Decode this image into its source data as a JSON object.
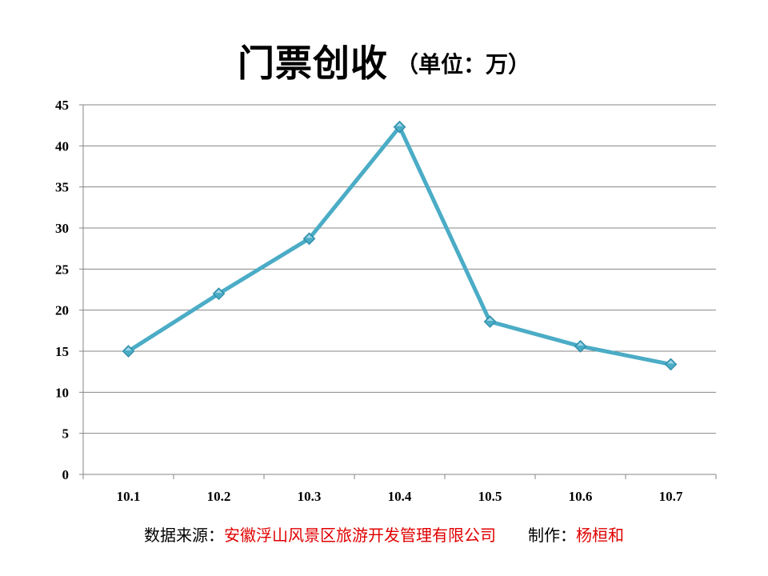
{
  "title": {
    "main": "门票创收",
    "unit": "（单位：万）"
  },
  "footer": {
    "source_label": "数据来源：",
    "source_value": "安徽浮山风景区旅游开发管理有限公司",
    "maker_label": "制作：",
    "maker_value": "杨桓和"
  },
  "colors": {
    "line": "#4bacc6",
    "marker": "#4bacc6",
    "grid": "#868686",
    "footer_value": "#e00000"
  },
  "chart_data": {
    "type": "line",
    "categories": [
      "10.1",
      "10.2",
      "10.3",
      "10.4",
      "10.5",
      "10.6",
      "10.7"
    ],
    "series": [
      {
        "values": [
          15,
          22,
          28.7,
          42.3,
          18.6,
          15.6,
          13.4
        ]
      }
    ],
    "y_ticks": [
      "0",
      "5",
      "10",
      "15",
      "20",
      "25",
      "30",
      "35",
      "40",
      "45"
    ],
    "ylim": [
      0,
      45
    ],
    "grid": true,
    "legend": "none",
    "marker": "diamond"
  }
}
